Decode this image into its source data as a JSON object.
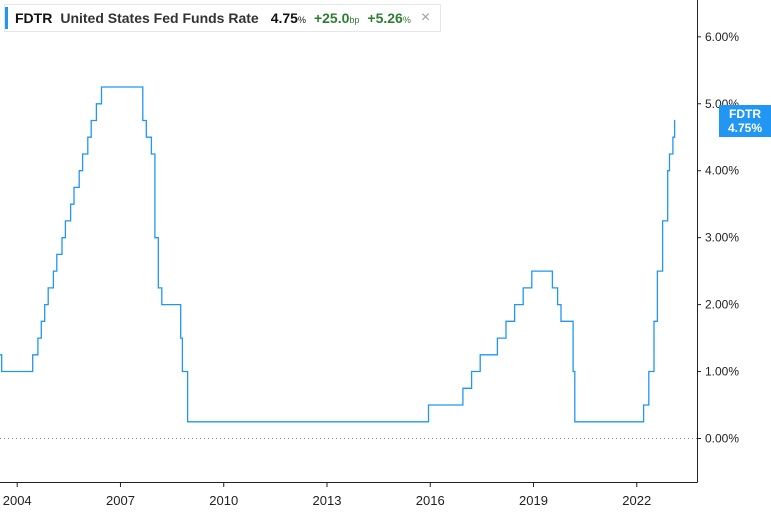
{
  "legend": {
    "ticker": "FDTR",
    "name": "United States Fed Funds Rate",
    "value": "4.75",
    "value_unit": "%",
    "change_bp": "+25.0",
    "change_bp_unit": "bp",
    "change_pct": "+5.26",
    "change_pct_unit": "%",
    "close_icon": "close-icon"
  },
  "flag": {
    "ticker": "FDTR",
    "value": "4.75%"
  },
  "colors": {
    "line": "#2196f3",
    "positive": "#2e7d32",
    "axis": "#222222",
    "zero_line": "#8a8a8a"
  },
  "chart_data": {
    "type": "line",
    "title": "",
    "xlabel": "",
    "ylabel": "",
    "x_tick_labels": [
      "2004",
      "2007",
      "2010",
      "2013",
      "2016",
      "2019",
      "2022"
    ],
    "y_tick_labels": [
      "0.00%",
      "1.00%",
      "2.00%",
      "3.00%",
      "4.00%",
      "5.00%",
      "6.00%"
    ],
    "y_ticks": [
      0,
      1,
      2,
      3,
      4,
      5,
      6
    ],
    "x_ticks": [
      2004,
      2007,
      2010,
      2013,
      2016,
      2019,
      2022
    ],
    "xlim": [
      2003.5,
      2023.75
    ],
    "ylim": [
      -0.65,
      6.55
    ],
    "grid": false,
    "zero_line": "dotted",
    "y_axis_position": "right",
    "series": [
      {
        "name": "FDTR",
        "step": true,
        "points": [
          [
            2003.5,
            1.25
          ],
          [
            2003.55,
            1.0
          ],
          [
            2004.45,
            1.25
          ],
          [
            2004.6,
            1.5
          ],
          [
            2004.7,
            1.75
          ],
          [
            2004.8,
            2.0
          ],
          [
            2004.9,
            2.25
          ],
          [
            2005.05,
            2.5
          ],
          [
            2005.15,
            2.75
          ],
          [
            2005.3,
            3.0
          ],
          [
            2005.4,
            3.25
          ],
          [
            2005.55,
            3.5
          ],
          [
            2005.65,
            3.75
          ],
          [
            2005.8,
            4.0
          ],
          [
            2005.9,
            4.25
          ],
          [
            2006.05,
            4.5
          ],
          [
            2006.15,
            4.75
          ],
          [
            2006.3,
            5.0
          ],
          [
            2006.45,
            5.25
          ],
          [
            2007.65,
            4.75
          ],
          [
            2007.75,
            4.5
          ],
          [
            2007.9,
            4.25
          ],
          [
            2008.0,
            3.0
          ],
          [
            2008.1,
            2.25
          ],
          [
            2008.2,
            2.0
          ],
          [
            2008.75,
            1.5
          ],
          [
            2008.8,
            1.0
          ],
          [
            2008.95,
            0.25
          ],
          [
            2015.95,
            0.5
          ],
          [
            2016.95,
            0.75
          ],
          [
            2017.2,
            1.0
          ],
          [
            2017.45,
            1.25
          ],
          [
            2017.95,
            1.5
          ],
          [
            2018.2,
            1.75
          ],
          [
            2018.45,
            2.0
          ],
          [
            2018.7,
            2.25
          ],
          [
            2018.95,
            2.5
          ],
          [
            2019.55,
            2.25
          ],
          [
            2019.7,
            2.0
          ],
          [
            2019.8,
            1.75
          ],
          [
            2020.15,
            1.0
          ],
          [
            2020.2,
            0.25
          ],
          [
            2022.2,
            0.5
          ],
          [
            2022.35,
            1.0
          ],
          [
            2022.5,
            1.75
          ],
          [
            2022.6,
            2.5
          ],
          [
            2022.75,
            3.25
          ],
          [
            2022.9,
            4.0
          ],
          [
            2022.95,
            4.25
          ],
          [
            2023.05,
            4.5
          ],
          [
            2023.1,
            4.75
          ],
          [
            2023.12,
            4.75
          ]
        ]
      }
    ]
  }
}
